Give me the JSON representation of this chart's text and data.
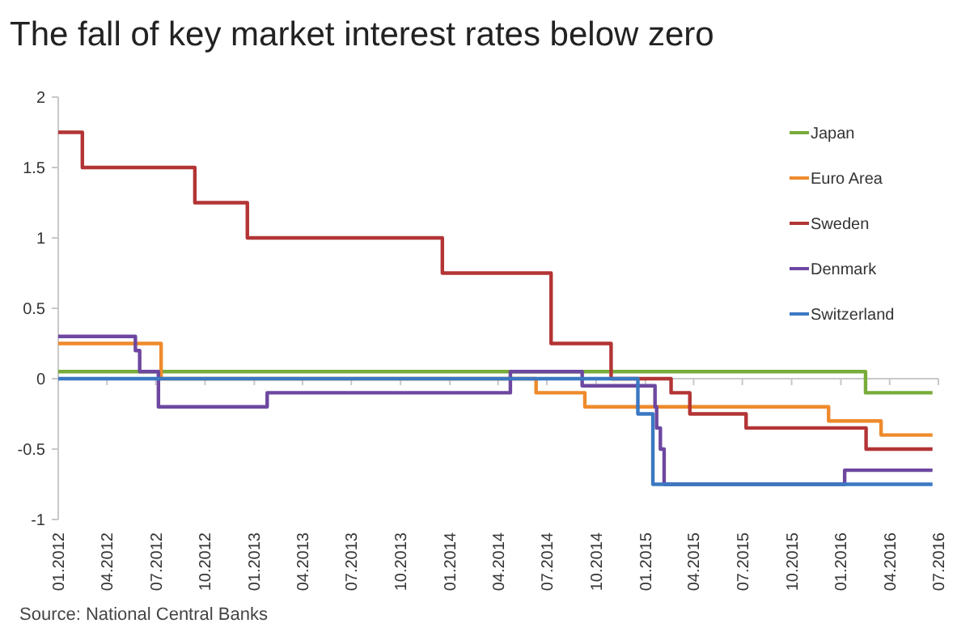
{
  "chart_data": {
    "type": "step",
    "title": "The fall of key market interest rates below zero",
    "annotations": [
      "Source: National Central Banks"
    ],
    "xlim": [
      "2012-01",
      "2016-07"
    ],
    "xticks": [
      {
        "value": "2012-01",
        "label": "01.2012"
      },
      {
        "value": "2012-04",
        "label": "04.2012"
      },
      {
        "value": "2012-07",
        "label": "07.2012"
      },
      {
        "value": "2012-10",
        "label": "10.2012"
      },
      {
        "value": "2013-01",
        "label": "01.2013"
      },
      {
        "value": "2013-04",
        "label": "04.2013"
      },
      {
        "value": "2013-07",
        "label": "07.2013"
      },
      {
        "value": "2013-10",
        "label": "10.2013"
      },
      {
        "value": "2014-01",
        "label": "01.2014"
      },
      {
        "value": "2014-04",
        "label": "04.2014"
      },
      {
        "value": "2014-07",
        "label": "07.2014"
      },
      {
        "value": "2014-10",
        "label": "10.2014"
      },
      {
        "value": "2015-01",
        "label": "01.2015"
      },
      {
        "value": "2015-04",
        "label": "04.2015"
      },
      {
        "value": "2015-07",
        "label": "07.2015"
      },
      {
        "value": "2015-10",
        "label": "10.2015"
      },
      {
        "value": "2016-01",
        "label": "01.2016"
      },
      {
        "value": "2016-04",
        "label": "04.2016"
      },
      {
        "value": "2016-07",
        "label": "07.2016"
      }
    ],
    "ylim": [
      -1,
      2
    ],
    "yticks": [
      -1,
      -0.5,
      0,
      0.5,
      1,
      1.5,
      2
    ],
    "legend": "top right",
    "line_style": "solid",
    "marker": "none",
    "series": [
      {
        "name": "Japan",
        "color": "#77ac3a",
        "x": [
          "2012-01",
          "2016-02-16",
          "2016-06-20"
        ],
        "values": [
          0.05,
          -0.1,
          -0.1
        ]
      },
      {
        "name": "Euro Area",
        "color": "#ee8a2c",
        "x": [
          "2012-01",
          "2012-07-11",
          "2014-06-11",
          "2014-09-10",
          "2015-12-09",
          "2016-03-16",
          "2016-06-20"
        ],
        "values": [
          0.25,
          0,
          -0.1,
          -0.2,
          -0.3,
          -0.4,
          -0.4
        ]
      },
      {
        "name": "Sweden",
        "color": "#b33435",
        "x": [
          "2012-01",
          "2012-02-15",
          "2012-09-12",
          "2012-12-19",
          "2013-12-18",
          "2014-07-09",
          "2014-10-29",
          "2015-02-18",
          "2015-03-25",
          "2015-07-08",
          "2016-02-17",
          "2016-06-20"
        ],
        "values": [
          1.75,
          1.5,
          1.25,
          1,
          0.75,
          0.25,
          0,
          -0.1,
          -0.25,
          -0.35,
          -0.5,
          -0.5
        ]
      },
      {
        "name": "Denmark",
        "color": "#6d47a0",
        "x": [
          "2012-01",
          "2012-05-24",
          "2012-06-01",
          "2012-07-06",
          "2013-01-25",
          "2014-04-24",
          "2014-09-05",
          "2015-01-19",
          "2015-01-22",
          "2015-01-29",
          "2015-02-05",
          "2016-01-08",
          "2016-06-20"
        ],
        "values": [
          0.3,
          0.2,
          0.05,
          -0.2,
          -0.1,
          0.05,
          -0.05,
          -0.2,
          -0.35,
          -0.5,
          -0.75,
          -0.65,
          -0.65
        ]
      },
      {
        "name": "Switzerland",
        "color": "#3b78c2",
        "x": [
          "2012-01",
          "2014-12-18",
          "2015-01-15",
          "2016-06-20"
        ],
        "values": [
          0,
          -0.25,
          -0.75,
          -0.75
        ]
      }
    ]
  }
}
